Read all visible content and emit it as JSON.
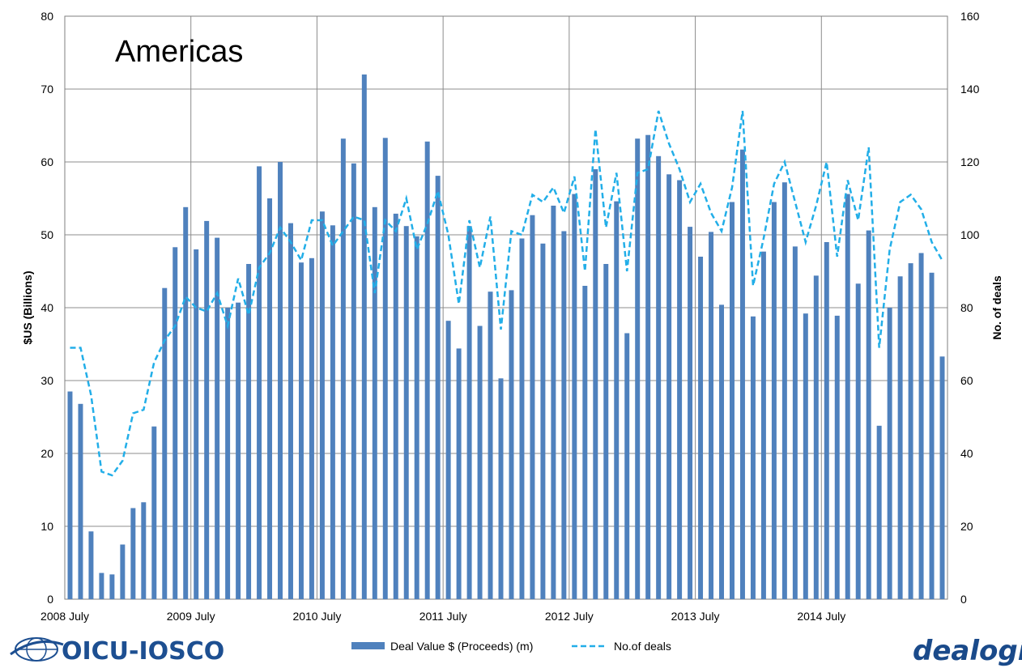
{
  "chart_data": {
    "type": "bar",
    "title": "Americas",
    "ylabel": "$US (Billions)",
    "y2label": "No. of deals",
    "ylim": [
      0,
      80
    ],
    "y2lim": [
      0,
      160
    ],
    "yticks": [
      "0",
      "10",
      "20",
      "30",
      "40",
      "50",
      "60",
      "70",
      "80"
    ],
    "y2ticks": [
      "0",
      "20",
      "40",
      "60",
      "80",
      "100",
      "120",
      "140",
      "160"
    ],
    "xticks": [
      {
        "label": "2008 July",
        "index": 0
      },
      {
        "label": "2009 July",
        "index": 12
      },
      {
        "label": "2010 July",
        "index": 24
      },
      {
        "label": "2011 July",
        "index": 36
      },
      {
        "label": "2012 July",
        "index": 48
      },
      {
        "label": "2013 July",
        "index": 60
      },
      {
        "label": "2014 July",
        "index": 72
      }
    ],
    "grid": true,
    "legend_position": "bottom",
    "series": [
      {
        "name": "Deal Value $ (Proceeds) (m)",
        "type": "bar",
        "axis": "left",
        "color": "#4f81bd",
        "values": [
          28.5,
          26.8,
          9.3,
          3.6,
          3.4,
          7.5,
          12.5,
          13.3,
          23.7,
          42.7,
          48.3,
          53.8,
          48.0,
          51.9,
          49.6,
          40.0,
          40.7,
          46.0,
          59.4,
          55.0,
          60.0,
          51.6,
          46.2,
          46.8,
          53.2,
          51.3,
          63.2,
          59.8,
          72.0,
          53.8,
          63.3,
          52.9,
          51.2,
          49.8,
          62.8,
          58.1,
          38.2,
          34.4,
          51.2,
          37.5,
          42.2,
          30.3,
          42.4,
          49.5,
          52.7,
          48.8,
          54.0,
          50.5,
          55.6,
          43.0,
          59.0,
          46.0,
          54.6,
          36.5,
          63.2,
          63.7,
          60.8,
          58.3,
          57.5,
          51.1,
          47.0,
          50.4,
          40.4,
          54.5,
          61.7,
          38.8,
          47.7,
          54.5,
          57.2,
          48.4,
          39.2,
          44.4,
          49.0,
          38.9,
          55.6,
          43.3,
          50.6,
          23.8,
          40.0,
          44.3,
          46.1,
          47.5,
          44.8,
          33.3
        ]
      },
      {
        "name": "No.of deals",
        "type": "line",
        "style": "dashed",
        "axis": "right",
        "color": "#22aee8",
        "values": [
          69,
          69,
          56,
          35,
          34,
          38,
          51,
          52,
          65,
          71,
          75,
          83,
          80,
          79,
          84,
          75,
          88,
          78,
          91,
          95,
          102,
          98,
          93,
          104,
          104,
          97,
          101,
          105,
          104,
          84,
          104,
          101,
          110,
          96,
          103,
          112,
          100,
          81,
          104,
          91,
          105,
          74,
          101,
          100,
          111,
          109,
          113,
          106,
          116,
          90,
          129,
          102,
          117,
          90,
          117,
          118,
          134,
          125,
          118,
          109,
          114,
          106,
          101,
          113,
          134,
          86,
          99,
          114,
          120,
          109,
          98,
          108,
          120,
          94,
          115,
          104,
          124,
          69,
          96,
          109,
          111,
          107,
          98,
          93
        ]
      }
    ],
    "logos": {
      "left": "OICU-IOSCO",
      "right": "dealogic"
    }
  }
}
